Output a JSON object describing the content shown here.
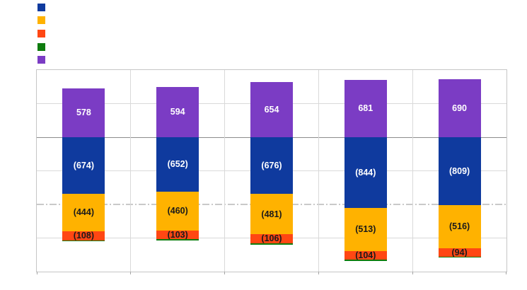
{
  "page": {
    "background": "#FFFFFF",
    "title_text": ""
  },
  "legend": {
    "items": [
      {
        "name": "blue",
        "color": "#0F3A9E",
        "label": ""
      },
      {
        "name": "yellow",
        "color": "#FFB200",
        "label": ""
      },
      {
        "name": "orange",
        "color": "#FF4713",
        "label": ""
      },
      {
        "name": "green",
        "color": "#0E7C0E",
        "label": ""
      },
      {
        "name": "purple",
        "color": "#7B3CC4",
        "label": ""
      }
    ]
  },
  "chart_data": {
    "type": "bar",
    "stacked": true,
    "title": "",
    "xlabel": "",
    "ylabel": "",
    "categories": [
      "",
      "",
      "",
      "",
      ""
    ],
    "ylim": [
      -1600,
      800
    ],
    "gridline_interval": 400,
    "grid": true,
    "dashed_line_value": -800,
    "legend_position": "top-left",
    "series": [
      {
        "name": "blue",
        "color": "#0F3A9E",
        "label_color": "#FFFFFF",
        "values": [
          -674,
          -652,
          -676,
          -844,
          -809
        ],
        "labels": [
          "(674)",
          "(652)",
          "(676)",
          "(844)",
          "(809)"
        ]
      },
      {
        "name": "yellow",
        "color": "#FFB200",
        "label_color": "#1A1A1A",
        "values": [
          -444,
          -460,
          -481,
          -513,
          -516
        ],
        "labels": [
          "(444)",
          "(460)",
          "(481)",
          "(513)",
          "(516)"
        ]
      },
      {
        "name": "orange",
        "color": "#FF4713",
        "label_color": "#1A1A1A",
        "values": [
          -108,
          -103,
          -106,
          -104,
          -94
        ],
        "labels": [
          "(108)",
          "(103)",
          "(106)",
          "(104)",
          "(94)"
        ]
      },
      {
        "name": "green",
        "color": "#0E7C0E",
        "label_color": "#1A1A1A",
        "estimated": true,
        "values": [
          -15,
          -15,
          -15,
          -15,
          -15
        ],
        "labels": [
          "",
          "",
          "",
          "",
          ""
        ]
      },
      {
        "name": "purple",
        "color": "#7B3CC4",
        "label_color": "#FFFFFF",
        "values": [
          578,
          594,
          654,
          681,
          690
        ],
        "labels": [
          "578",
          "594",
          "654",
          "681",
          "690"
        ]
      }
    ],
    "colors": {
      "gridline": "#D9D9D9",
      "zero_axis": "#8C8C8C",
      "plot_border": "#C6C6C6",
      "dashed_line": "#C9C9C9",
      "tick": "#A6A6A6"
    }
  }
}
